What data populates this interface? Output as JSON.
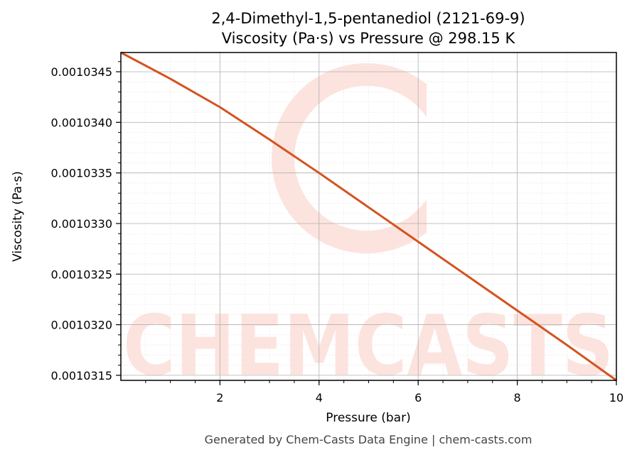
{
  "chart_data": {
    "type": "line",
    "title": "2,4-Dimethyl-1,5-pentanediol (2121-69-9)",
    "subtitle": "Viscosity (Pa·s) vs Pressure @ 298.15 K",
    "xlabel": "Pressure (bar)",
    "ylabel": "Viscosity (Pa·s)",
    "xlim": [
      0.0,
      10.0
    ],
    "ylim": [
      0.00103145,
      0.00103469
    ],
    "x_ticks": [
      2,
      4,
      6,
      8,
      10
    ],
    "x_tick_labels": [
      "2",
      "4",
      "6",
      "8",
      "10"
    ],
    "y_ticks": [
      0.0010315,
      0.001032,
      0.0010325,
      0.001033,
      0.0010335,
      0.001034,
      0.0010345
    ],
    "y_tick_labels": [
      "0.0010315",
      "0.0010320",
      "0.0010325",
      "0.0010330",
      "0.0010335",
      "0.0010340",
      "0.0010345"
    ],
    "grid": true,
    "minor_grid": true,
    "series": [
      {
        "color": "#d4531f",
        "x": [
          0,
          1,
          2,
          3,
          4,
          5,
          6,
          7,
          8,
          9,
          10
        ],
        "y": [
          0.00103469,
          0.00103443,
          0.00103415,
          0.00103383,
          0.0010335,
          0.00103316,
          0.00103282,
          0.00103248,
          0.00103214,
          0.0010318,
          0.00103145
        ]
      }
    ]
  },
  "watermark": {
    "text": "CHEMCASTS",
    "color": "#fde3de"
  },
  "footer": "Generated by Chem-Casts Data Engine | chem-casts.com"
}
